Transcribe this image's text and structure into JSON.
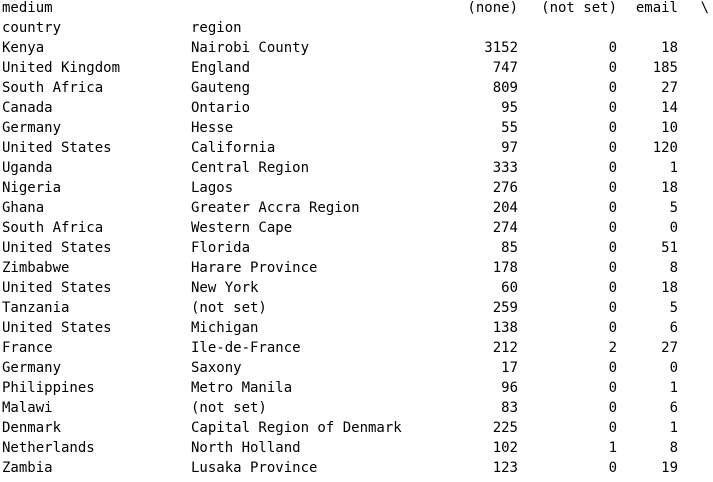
{
  "header": {
    "columns_label": "medium",
    "none_label": "(none)",
    "not_set_label": "(not set)",
    "email_label": "email",
    "continuation_marker": "\\",
    "index_name_country": "country",
    "index_name_region": "region"
  },
  "rows": [
    {
      "country": "Kenya",
      "region": "Nairobi County",
      "none": "3152",
      "not_set": "0",
      "email": "18"
    },
    {
      "country": "United Kingdom",
      "region": "England",
      "none": "747",
      "not_set": "0",
      "email": "185"
    },
    {
      "country": "South Africa",
      "region": "Gauteng",
      "none": "809",
      "not_set": "0",
      "email": "27"
    },
    {
      "country": "Canada",
      "region": "Ontario",
      "none": "95",
      "not_set": "0",
      "email": "14"
    },
    {
      "country": "Germany",
      "region": "Hesse",
      "none": "55",
      "not_set": "0",
      "email": "10"
    },
    {
      "country": "United States",
      "region": "California",
      "none": "97",
      "not_set": "0",
      "email": "120"
    },
    {
      "country": "Uganda",
      "region": "Central Region",
      "none": "333",
      "not_set": "0",
      "email": "1"
    },
    {
      "country": "Nigeria",
      "region": "Lagos",
      "none": "276",
      "not_set": "0",
      "email": "18"
    },
    {
      "country": "Ghana",
      "region": "Greater Accra Region",
      "none": "204",
      "not_set": "0",
      "email": "5"
    },
    {
      "country": "South Africa",
      "region": "Western Cape",
      "none": "274",
      "not_set": "0",
      "email": "0"
    },
    {
      "country": "United States",
      "region": "Florida",
      "none": "85",
      "not_set": "0",
      "email": "51"
    },
    {
      "country": "Zimbabwe",
      "region": "Harare Province",
      "none": "178",
      "not_set": "0",
      "email": "8"
    },
    {
      "country": "United States",
      "region": "New York",
      "none": "60",
      "not_set": "0",
      "email": "18"
    },
    {
      "country": "Tanzania",
      "region": "(not set)",
      "none": "259",
      "not_set": "0",
      "email": "5"
    },
    {
      "country": "United States",
      "region": "Michigan",
      "none": "138",
      "not_set": "0",
      "email": "6"
    },
    {
      "country": "France",
      "region": "Ile-de-France",
      "none": "212",
      "not_set": "2",
      "email": "27"
    },
    {
      "country": "Germany",
      "region": "Saxony",
      "none": "17",
      "not_set": "0",
      "email": "0"
    },
    {
      "country": "Philippines",
      "region": "Metro Manila",
      "none": "96",
      "not_set": "0",
      "email": "1"
    },
    {
      "country": "Malawi",
      "region": "(not set)",
      "none": "83",
      "not_set": "0",
      "email": "6"
    },
    {
      "country": "Denmark",
      "region": "Capital Region of Denmark",
      "none": "225",
      "not_set": "0",
      "email": "1"
    },
    {
      "country": "Netherlands",
      "region": "North Holland",
      "none": "102",
      "not_set": "1",
      "email": "8"
    },
    {
      "country": "Zambia",
      "region": "Lusaka Province",
      "none": "123",
      "not_set": "0",
      "email": "19"
    }
  ]
}
